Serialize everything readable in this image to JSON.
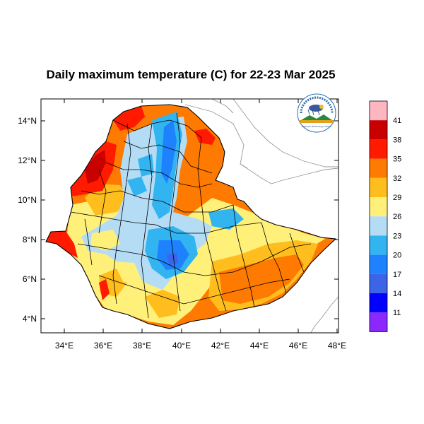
{
  "title": "Daily maximum temperature (C) for 22-23 Mar 2025",
  "lat_ticks": [
    "4°N",
    "6°N",
    "8°N",
    "10°N",
    "12°N",
    "14°N"
  ],
  "lon_ticks": [
    "34°E",
    "36°E",
    "38°E",
    "40°E",
    "42°E",
    "44°E",
    "46°E",
    "48°E"
  ],
  "map_extent": {
    "lon": [
      33,
      48.2
    ],
    "lat": [
      3.2,
      15
    ]
  },
  "logo": {
    "caption": "Ethiopian Meteorology Institute"
  },
  "colorbar": {
    "levels": [
      "41",
      "38",
      "35",
      "32",
      "29",
      "26",
      "23",
      "20",
      "17",
      "14",
      "11"
    ],
    "colors": [
      "#ffb6c1",
      "#c80000",
      "#ff1a00",
      "#ff7a00",
      "#ffbe1e",
      "#fff07a",
      "#b4dcf5",
      "#32b4f0",
      "#1e82ff",
      "#3c64e6",
      "#0000ff",
      "#8c28ff"
    ]
  }
}
